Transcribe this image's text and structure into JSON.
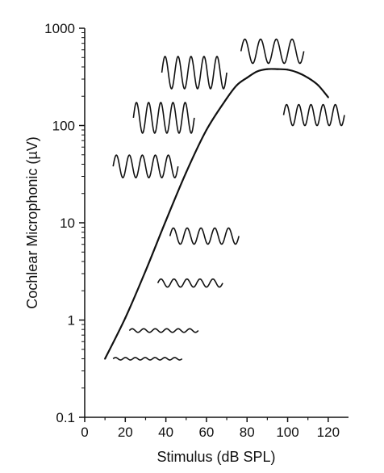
{
  "chart_data": {
    "type": "line",
    "xlabel": "Stimulus (dB SPL)",
    "ylabel": "Cochlear Microphonic (µV)",
    "xlim": [
      0,
      130
    ],
    "ylim": [
      0.1,
      1000
    ],
    "yscale": "log",
    "grid": false,
    "x_ticks": [
      0,
      20,
      40,
      60,
      80,
      100,
      120
    ],
    "x_tick_labels": [
      "0",
      "20",
      "40",
      "60",
      "80",
      "100",
      "120"
    ],
    "y_ticks": [
      0.1,
      1,
      10,
      100,
      1000
    ],
    "y_tick_labels": [
      "0.1",
      "1",
      "10",
      "100",
      "1000"
    ],
    "series": [
      {
        "x": [
          10,
          20,
          30,
          40,
          50,
          60,
          70,
          75,
          80,
          85,
          90,
          95,
          100,
          105,
          110,
          115,
          120
        ],
        "y": [
          0.4,
          1.05,
          3.2,
          10.5,
          33,
          90,
          190,
          260,
          310,
          360,
          380,
          380,
          375,
          350,
          310,
          260,
          195
        ]
      }
    ],
    "waveforms": [
      {
        "name": "waveform-1",
        "x_start": 14,
        "x_end": 48,
        "y": 0.4,
        "cycles": 7,
        "amplitude": 1.5
      },
      {
        "name": "waveform-2",
        "x_start": 22,
        "x_end": 56,
        "y": 0.78,
        "cycles": 6,
        "amplitude": 2.2
      },
      {
        "name": "waveform-3",
        "x_start": 36,
        "x_end": 68,
        "y": 2.4,
        "cycles": 5,
        "amplitude": 5
      },
      {
        "name": "waveform-4",
        "x_start": 42,
        "x_end": 76,
        "y": 7.3,
        "cycles": 5,
        "amplitude": 10
      },
      {
        "name": "waveform-5",
        "x_start": 14,
        "x_end": 46,
        "y": 38,
        "cycles": 5,
        "amplitude": 14
      },
      {
        "name": "waveform-6",
        "x_start": 24,
        "x_end": 54,
        "y": 120,
        "cycles": 5,
        "amplitude": 19
      },
      {
        "name": "waveform-7",
        "x_start": 38,
        "x_end": 70,
        "y": 350,
        "cycles": 5,
        "amplitude": 20
      },
      {
        "name": "waveform-8",
        "x_start": 77,
        "x_end": 108,
        "y": 580,
        "cycles": 4,
        "amplitude": 15
      },
      {
        "name": "waveform-9",
        "x_start": 98,
        "x_end": 128,
        "y": 128,
        "cycles": 5,
        "amplitude": 13
      }
    ]
  }
}
